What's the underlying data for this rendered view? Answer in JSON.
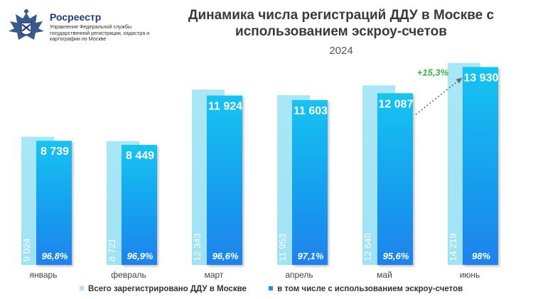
{
  "header": {
    "org_name": "Росреестр",
    "org_subtitle": "Управление Федеральной службы государственной регистрации, кадастра и картографии по Москве"
  },
  "chart_data": {
    "type": "bar",
    "title": "Динамика числа регистраций ДДУ в Москве с использованием эскроу-счетов",
    "subtitle": "2024",
    "categories": [
      "январь",
      "февраль",
      "март",
      "апрель",
      "май",
      "июнь"
    ],
    "series": [
      {
        "name": "Всего зарегистрировано ДДУ в Москве",
        "values": [
          9024,
          8721,
          12343,
          11953,
          12640,
          14219
        ],
        "labels": [
          "9 024",
          "8 721",
          "12 343",
          "11 953",
          "12 640",
          "14 219"
        ],
        "color": "#a6e6f7"
      },
      {
        "name": "в том числе с использованием эскроу-счетов",
        "values": [
          8739,
          8449,
          11924,
          11603,
          12087,
          13930
        ],
        "labels": [
          "8 739",
          "8 449",
          "11 924",
          "11 603",
          "12 087",
          "13 930"
        ],
        "share_labels": [
          "96,8%",
          "96,9%",
          "96,6%",
          "97,1%",
          "95,6%",
          "98%"
        ],
        "color": "#1e90ee"
      }
    ],
    "annotation": {
      "text": "+15,3%",
      "from": "май",
      "to": "июнь",
      "color": "#3cb44b"
    },
    "grid": false,
    "legend_position": "bottom"
  }
}
